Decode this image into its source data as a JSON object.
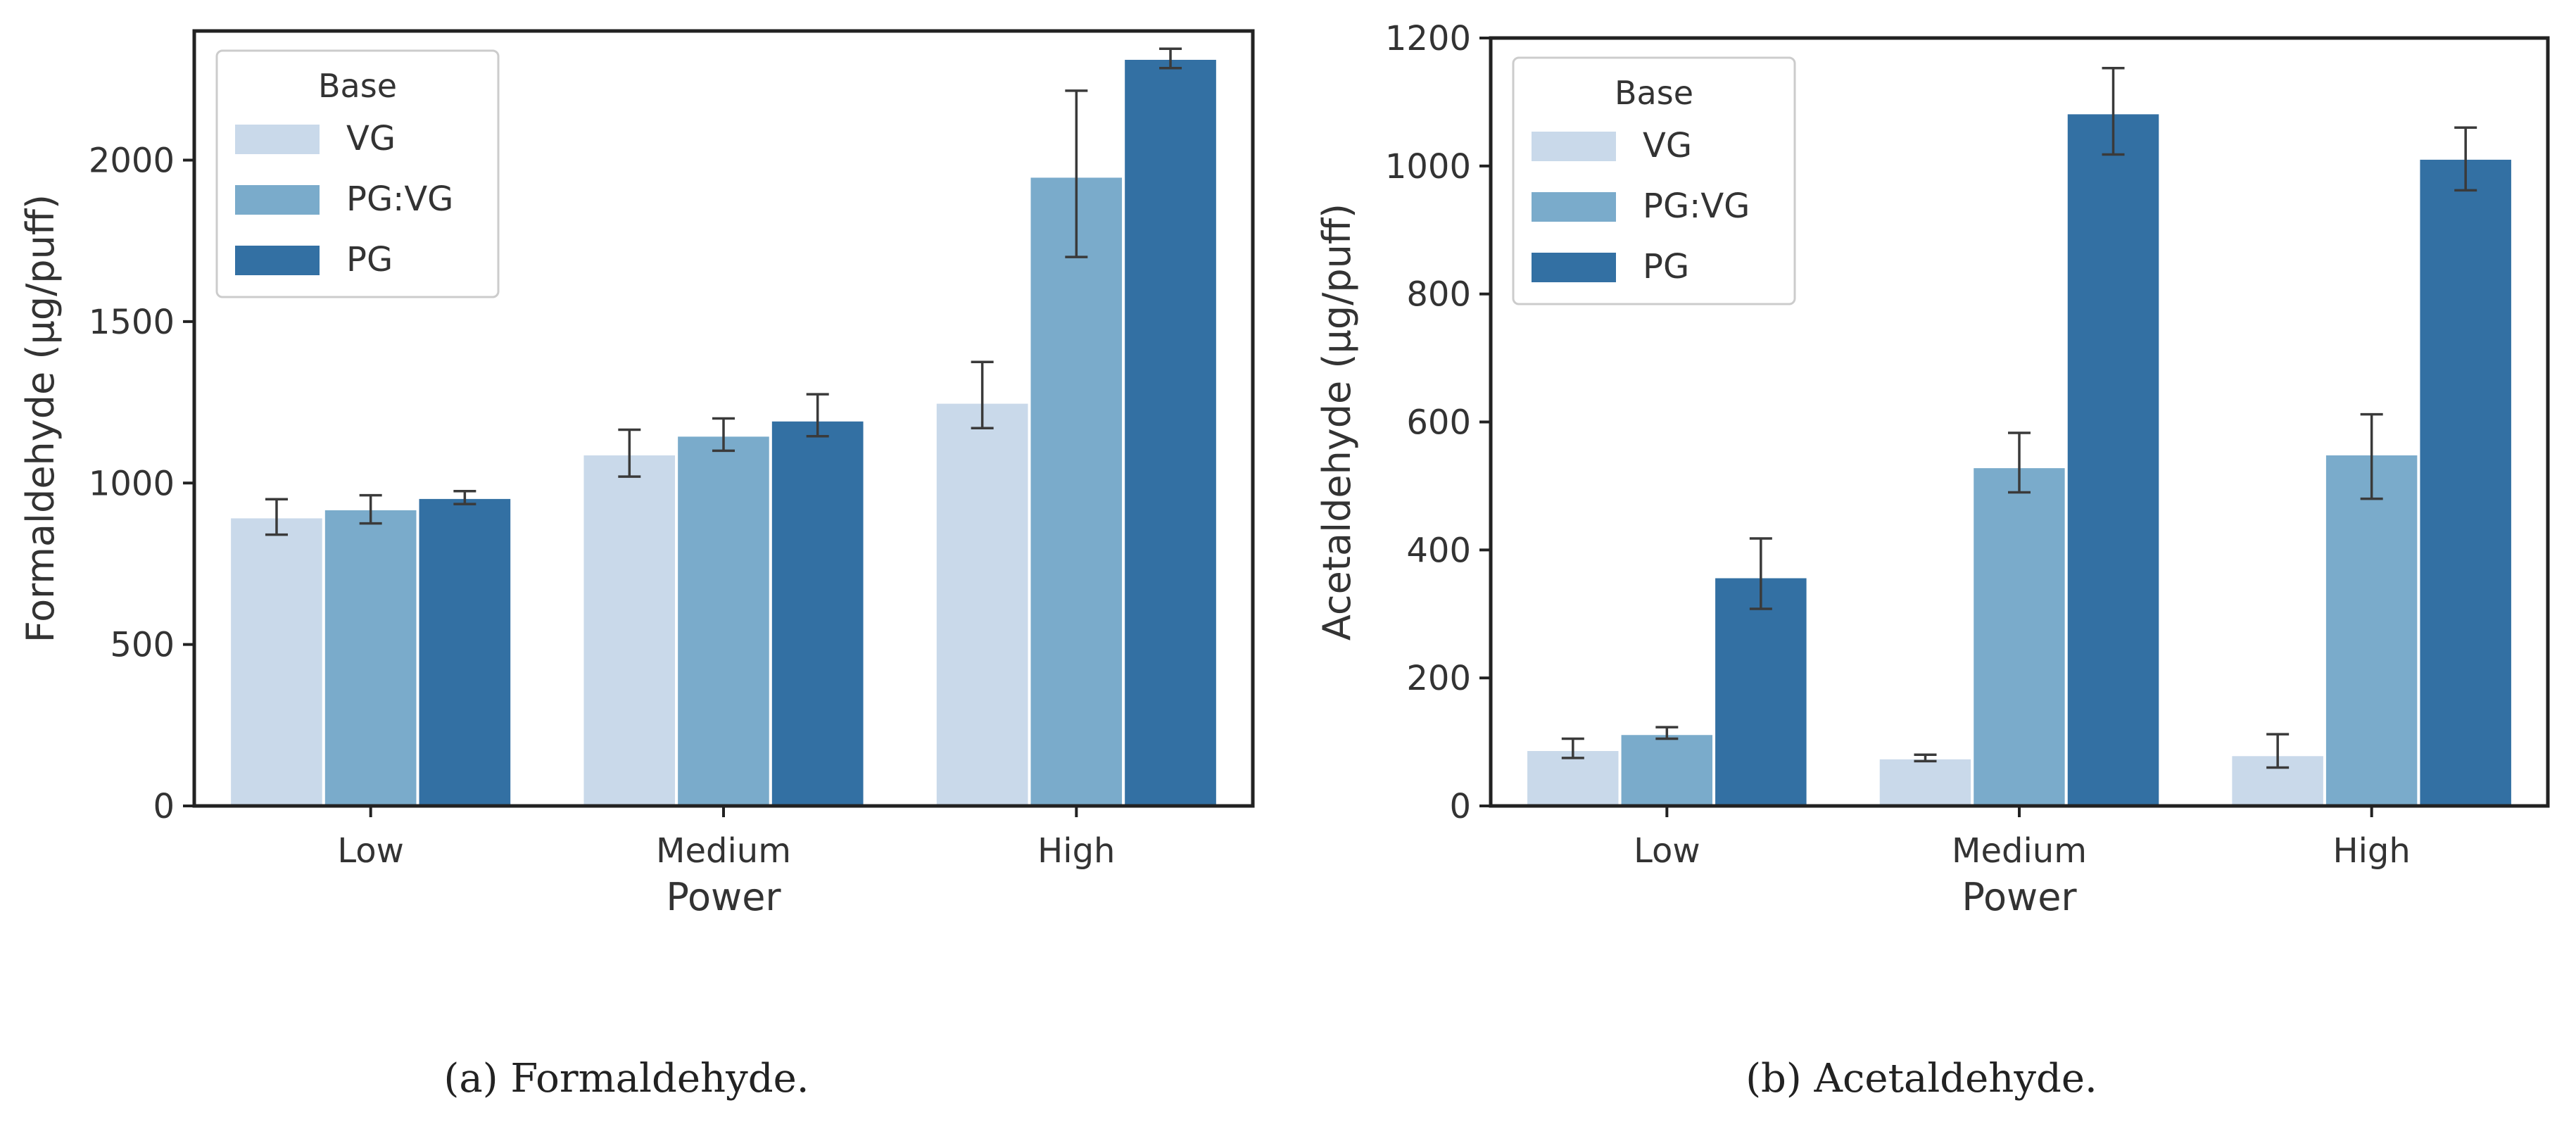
{
  "captions": [
    "(a) Formaldehyde.",
    "(b) Acetaldehyde."
  ],
  "chart_data": [
    {
      "type": "bar",
      "xlabel": "Power",
      "ylabel": "Formaldehyde (µg/puff)",
      "categories": [
        "Low",
        "Medium",
        "High"
      ],
      "ylim": [
        0,
        2400
      ],
      "yticks": [
        0,
        500,
        1000,
        1500,
        2000
      ],
      "legend_title": "Base",
      "legend_position": "top-left",
      "series": [
        {
          "name": "VG",
          "color": "#c9d9ea",
          "values": [
            895,
            1090,
            1250
          ],
          "err_low": [
            840,
            1020,
            1170
          ],
          "err_high": [
            950,
            1165,
            1375
          ]
        },
        {
          "name": "PG:VG",
          "color": "#7aabcb",
          "values": [
            920,
            1148,
            1950
          ],
          "err_low": [
            875,
            1100,
            1700
          ],
          "err_high": [
            962,
            1200,
            2215
          ]
        },
        {
          "name": "PG",
          "color": "#3370a3",
          "values": [
            955,
            1195,
            2315
          ],
          "err_low": [
            935,
            1145,
            2285
          ],
          "err_high": [
            975,
            1275,
            2345
          ]
        }
      ]
    },
    {
      "type": "bar",
      "xlabel": "Power",
      "ylabel": "Acetaldehyde (µg/puff)",
      "categories": [
        "Low",
        "Medium",
        "High"
      ],
      "ylim": [
        0,
        1200
      ],
      "yticks": [
        0,
        200,
        400,
        600,
        800,
        1000,
        1200
      ],
      "legend_title": "Base",
      "legend_position": "top-left",
      "series": [
        {
          "name": "VG",
          "color": "#c9d9ea",
          "values": [
            88,
            75,
            80
          ],
          "err_low": [
            75,
            70,
            60
          ],
          "err_high": [
            105,
            80,
            112
          ]
        },
        {
          "name": "PG:VG",
          "color": "#7aabcb",
          "values": [
            113,
            530,
            550
          ],
          "err_low": [
            105,
            490,
            480
          ],
          "err_high": [
            123,
            583,
            612
          ]
        },
        {
          "name": "PG",
          "color": "#3370a3",
          "values": [
            358,
            1083,
            1012
          ],
          "err_low": [
            308,
            1018,
            962
          ],
          "err_high": [
            418,
            1153,
            1060
          ]
        }
      ]
    }
  ]
}
